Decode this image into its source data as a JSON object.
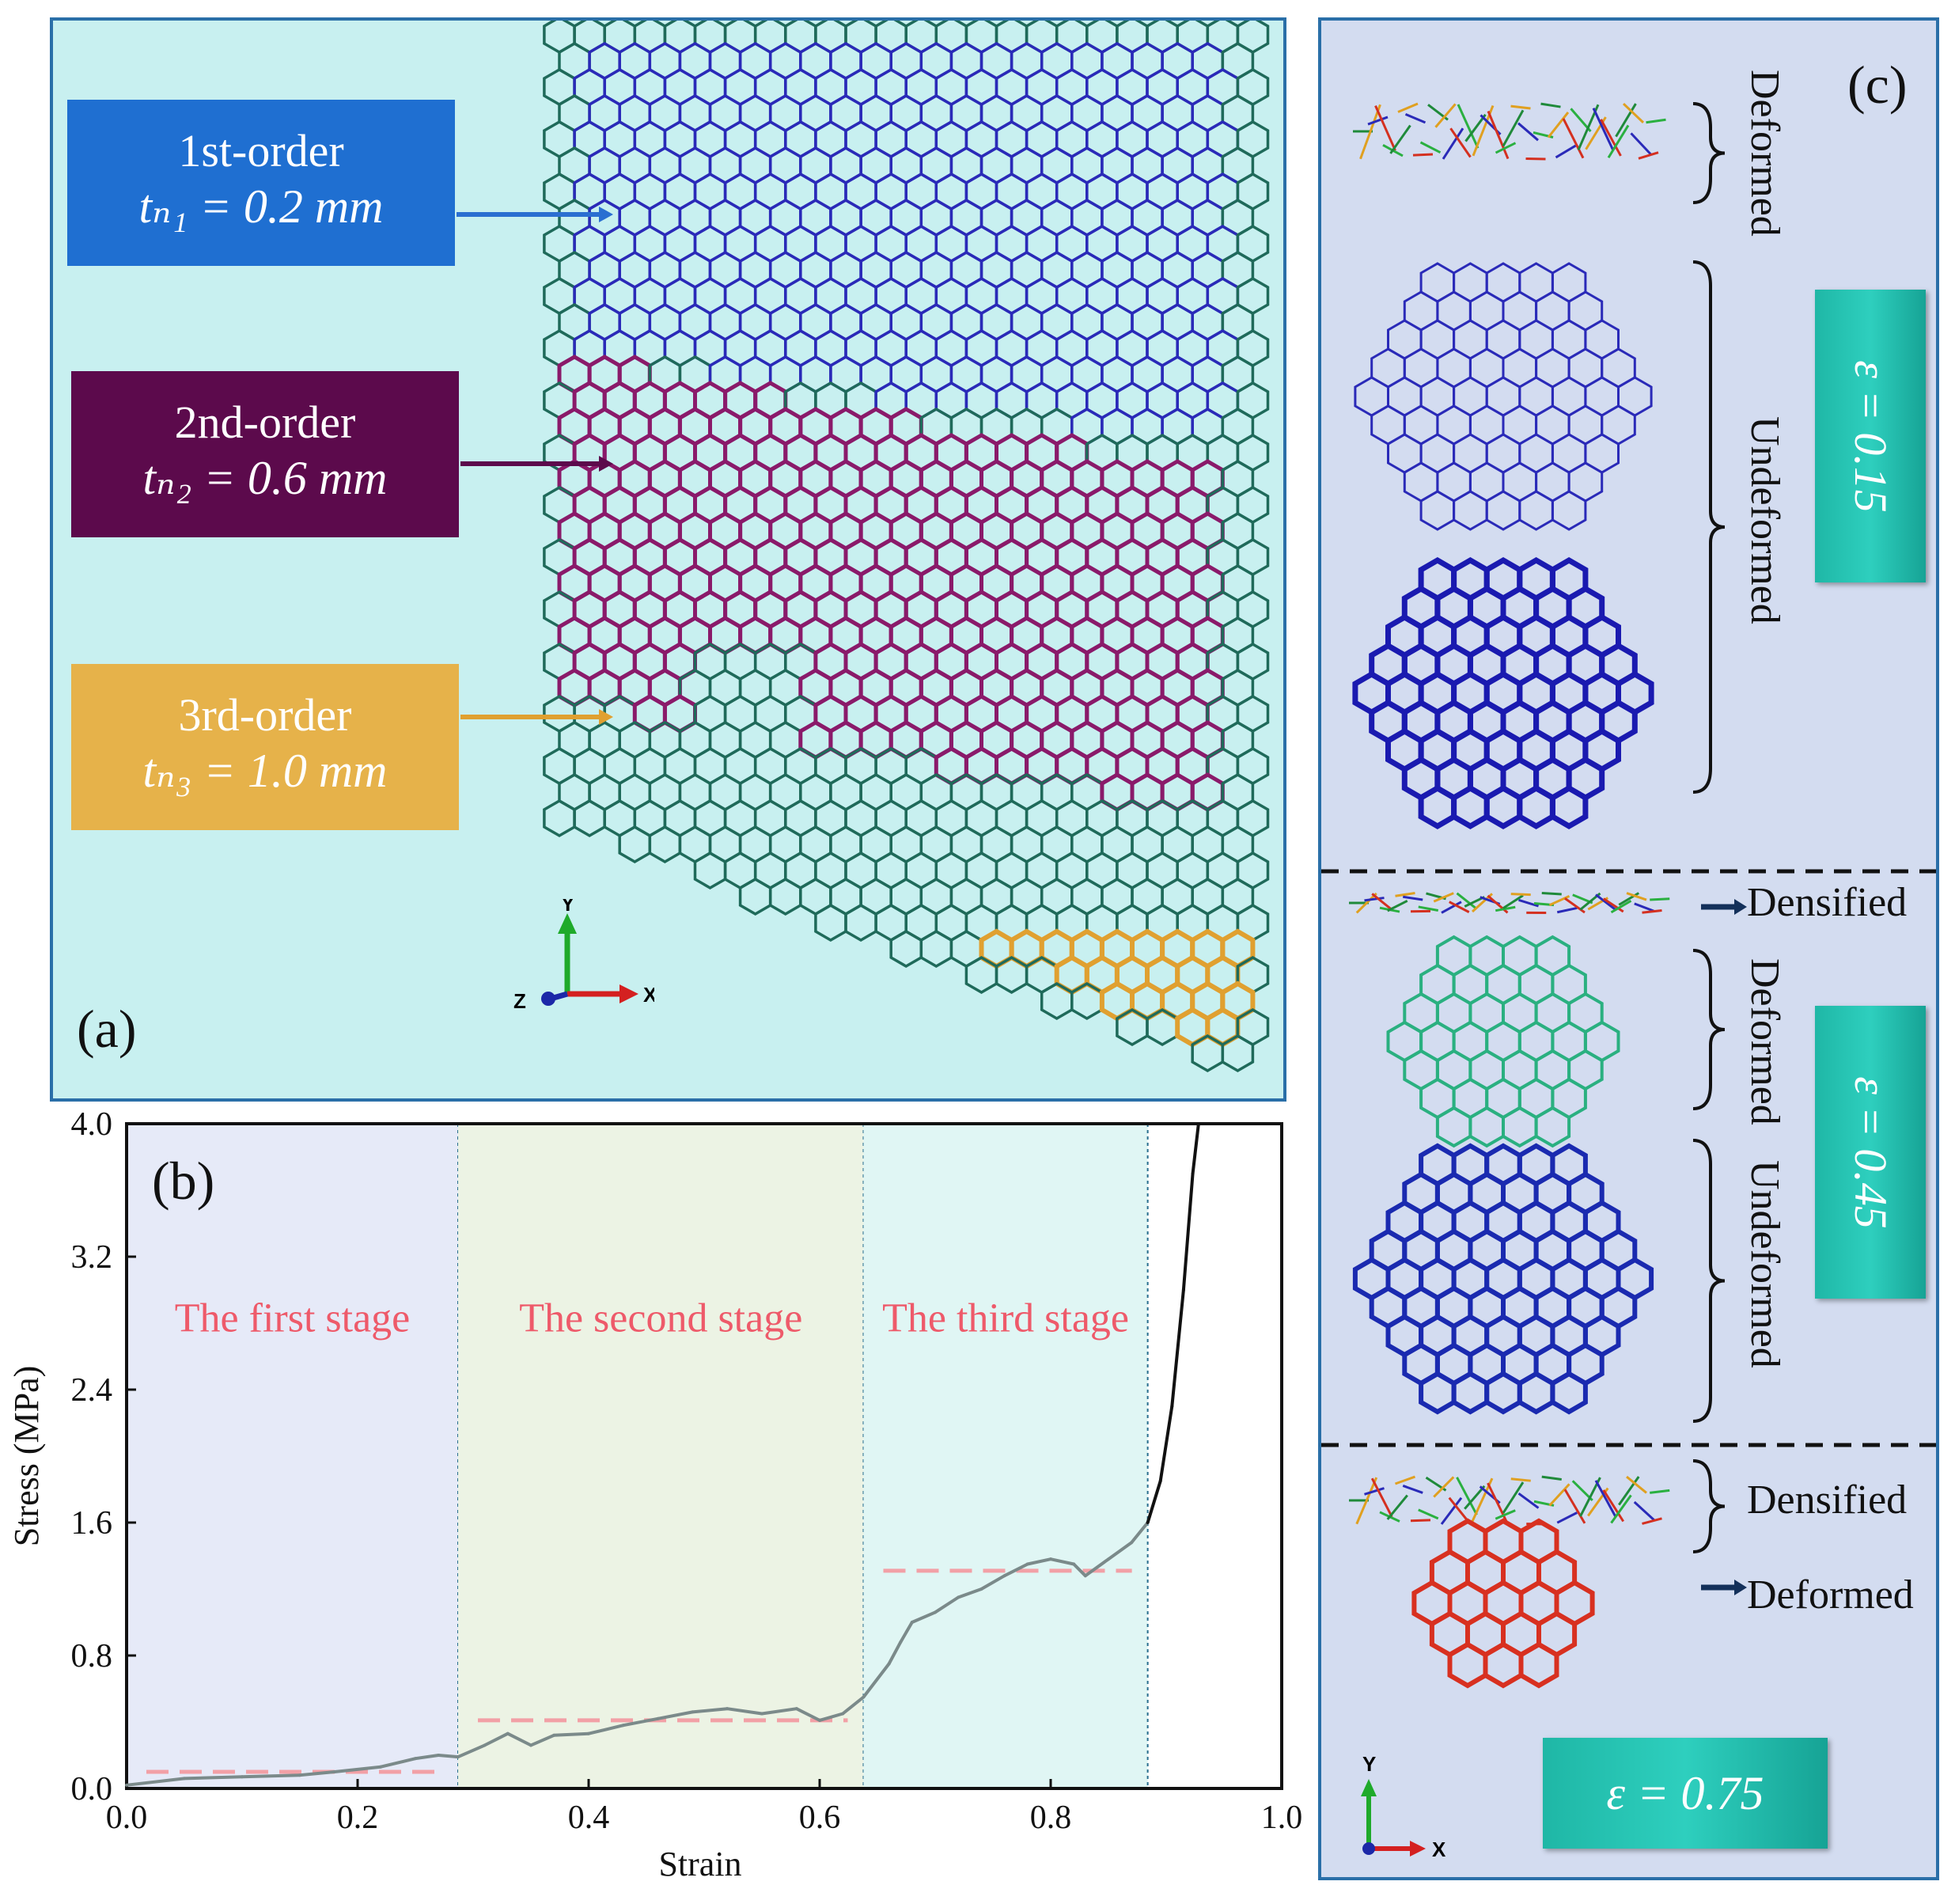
{
  "panel_a": {
    "letter": "(a)",
    "labels": [
      {
        "order": "1st-order",
        "thickness": "tₙ₁ = 0.2 mm",
        "color": "#1f6fd1"
      },
      {
        "order": "2nd-order",
        "thickness": "tₙ₂ = 0.6 mm",
        "color": "#5c0a4c"
      },
      {
        "order": "3rd-order",
        "thickness": "tₙ₃ = 1.0 mm",
        "color": "#e6b24a"
      }
    ],
    "axes": {
      "y": "Y",
      "x": "X",
      "z": "Z"
    },
    "colors": {
      "base": "#1f6a5a",
      "first": "#2a2ab8",
      "second": "#8a1a6a",
      "third": "#e0a030"
    }
  },
  "panel_c": {
    "letter": "(c)",
    "sections": [
      {
        "strain": "ε = 0.15",
        "states": [
          "Deformed",
          "Undeformed"
        ]
      },
      {
        "strain": "ε = 0.45",
        "states": [
          "Densified",
          "Deformed",
          "Undeformed"
        ]
      },
      {
        "strain": "ε = 0.75",
        "states": [
          "Densified",
          "Deformed"
        ]
      }
    ],
    "axes": {
      "y": "Y",
      "x": "X"
    }
  },
  "chart_data": {
    "type": "line",
    "panel_letter": "(b)",
    "xlabel": "Strain",
    "ylabel": "Stress (MPa)",
    "xlim": [
      0.0,
      1.0
    ],
    "ylim": [
      0.0,
      4.0
    ],
    "xticks": [
      "0.0",
      "0.2",
      "0.4",
      "0.6",
      "0.8",
      "1.0"
    ],
    "yticks": [
      "0.0",
      "0.8",
      "1.6",
      "2.4",
      "3.2",
      "4.0"
    ],
    "stages": [
      {
        "name": "The first stage",
        "start": 0.0,
        "end": 0.287,
        "color": "#e6eaf8",
        "plateau": 0.1
      },
      {
        "name": "The second stage",
        "start": 0.287,
        "end": 0.638,
        "color": "#ecf3e4",
        "plateau": 0.41
      },
      {
        "name": "The third stage",
        "start": 0.638,
        "end": 0.884,
        "color": "#e0f6f4",
        "plateau": 1.31
      }
    ],
    "series": [
      {
        "name": "stress-strain",
        "points": [
          [
            0.0,
            0.02
          ],
          [
            0.05,
            0.06
          ],
          [
            0.1,
            0.07
          ],
          [
            0.15,
            0.08
          ],
          [
            0.18,
            0.1
          ],
          [
            0.22,
            0.13
          ],
          [
            0.25,
            0.18
          ],
          [
            0.27,
            0.2
          ],
          [
            0.287,
            0.19
          ],
          [
            0.31,
            0.26
          ],
          [
            0.33,
            0.33
          ],
          [
            0.35,
            0.26
          ],
          [
            0.37,
            0.32
          ],
          [
            0.4,
            0.33
          ],
          [
            0.43,
            0.38
          ],
          [
            0.46,
            0.42
          ],
          [
            0.49,
            0.46
          ],
          [
            0.52,
            0.48
          ],
          [
            0.55,
            0.45
          ],
          [
            0.58,
            0.48
          ],
          [
            0.6,
            0.41
          ],
          [
            0.62,
            0.45
          ],
          [
            0.638,
            0.55
          ],
          [
            0.66,
            0.75
          ],
          [
            0.67,
            0.88
          ],
          [
            0.68,
            1.0
          ],
          [
            0.7,
            1.06
          ],
          [
            0.72,
            1.15
          ],
          [
            0.74,
            1.2
          ],
          [
            0.76,
            1.28
          ],
          [
            0.78,
            1.35
          ],
          [
            0.8,
            1.38
          ],
          [
            0.82,
            1.35
          ],
          [
            0.83,
            1.28
          ],
          [
            0.85,
            1.38
          ],
          [
            0.87,
            1.48
          ],
          [
            0.884,
            1.6
          ],
          [
            0.895,
            1.85
          ],
          [
            0.905,
            2.3
          ],
          [
            0.915,
            3.0
          ],
          [
            0.923,
            3.7
          ],
          [
            0.928,
            4.0
          ]
        ]
      }
    ]
  }
}
